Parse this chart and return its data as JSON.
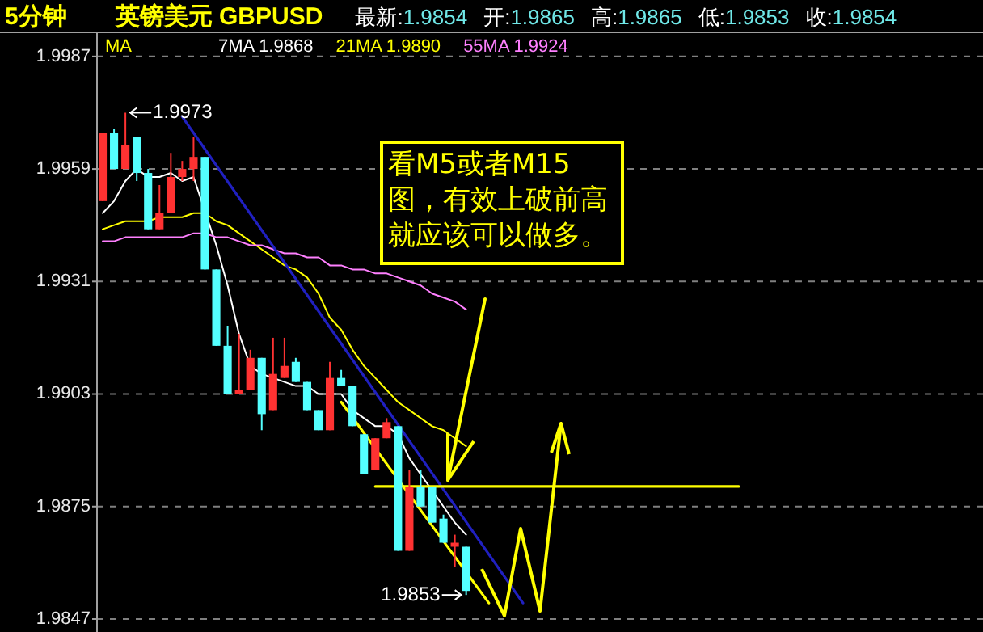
{
  "chart_data": {
    "type": "candlestick",
    "title": "5分钟",
    "subtitle": "英镑美元  GBPUSD",
    "legend_title": "MA",
    "annotations": [
      "最新:1.9854",
      "开:1.9865",
      "高:1.9865",
      "低:1.9853",
      "收:1.9854",
      "看M5或者M15图，有效上破前高就应该可以做多。",
      {
        "text": "1.9973",
        "y": 1.9973
      },
      "1.9853"
    ],
    "categories": [
      null,
      null,
      null,
      null,
      null,
      null,
      null,
      null,
      null,
      null,
      null,
      null,
      null,
      null,
      null,
      null,
      null,
      null,
      null,
      null,
      null,
      null,
      null,
      null,
      null,
      null,
      null,
      null,
      null,
      null,
      null,
      null,
      null,
      null,
      null,
      null,
      null,
      null,
      null,
      null,
      null,
      null,
      null,
      null,
      null,
      null,
      null,
      null,
      null,
      null,
      null,
      null,
      null,
      null,
      null,
      null,
      null,
      null,
      null,
      null,
      null,
      null,
      null,
      null,
      null,
      null,
      null,
      null,
      null,
      null,
      null,
      null,
      null,
      null,
      null,
      null,
      null,
      null
    ],
    "ohlc": [
      [
        1.9951,
        1.9968,
        1.9951,
        1.9968
      ],
      [
        1.9968,
        1.9969,
        1.9959,
        1.9959
      ],
      [
        1.9959,
        1.9973,
        1.9959,
        1.9965
      ],
      [
        1.9967,
        1.9967,
        1.9956,
        1.9958
      ],
      [
        1.9958,
        1.9959,
        1.9944,
        1.9944
      ],
      [
        1.9944,
        1.9955,
        1.9944,
        1.9948
      ],
      [
        1.9948,
        1.9963,
        1.9948,
        1.9957
      ],
      [
        1.9957,
        1.9961,
        1.9956,
        1.9959
      ],
      [
        1.9959,
        1.9967,
        1.9956,
        1.9962
      ],
      [
        1.9962,
        1.9962,
        1.9934,
        1.9934
      ],
      [
        1.9934,
        1.9934,
        1.9915,
        1.9915
      ],
      [
        1.9915,
        1.992,
        1.9903,
        1.9903
      ],
      [
        1.9903,
        1.9918,
        1.9903,
        1.9904
      ],
      [
        1.9904,
        1.9914,
        1.9904,
        1.9912
      ],
      [
        1.9912,
        1.9912,
        1.9894,
        1.9898
      ],
      [
        1.9899,
        1.9917,
        1.9899,
        1.9908
      ],
      [
        1.9907,
        1.9917,
        1.9907,
        1.991
      ],
      [
        1.9911,
        1.9912,
        1.9906,
        1.9906
      ],
      [
        1.9906,
        1.9906,
        1.9899,
        1.9899
      ],
      [
        1.9899,
        1.9899,
        1.9894,
        1.9894
      ],
      [
        1.9894,
        1.9911,
        1.9894,
        1.9907
      ],
      [
        1.9907,
        1.9909,
        1.9905,
        1.9905
      ],
      [
        1.9905,
        1.9905,
        1.9895,
        1.9895
      ],
      [
        1.9893,
        1.9893,
        1.9883,
        1.9883
      ],
      [
        1.9884,
        1.9892,
        1.9884,
        1.9892
      ],
      [
        1.9892,
        1.9897,
        1.9892,
        1.9896
      ],
      [
        1.9895,
        1.9895,
        1.9864,
        1.9864
      ],
      [
        1.9864,
        1.9884,
        1.9864,
        1.988
      ],
      [
        1.988,
        1.9884,
        1.9875,
        1.9875
      ],
      [
        1.988,
        1.988,
        1.9871,
        1.9871
      ],
      [
        1.9872,
        1.9873,
        1.9866,
        1.9866
      ],
      [
        1.9865,
        1.9868,
        1.986,
        1.9866
      ],
      [
        1.9865,
        1.9865,
        1.9853,
        1.9854
      ],
      null,
      null,
      null,
      null,
      null,
      null,
      null,
      null,
      null,
      null,
      null,
      null,
      null,
      null,
      null,
      null,
      null,
      null,
      null,
      null,
      null,
      null,
      null,
      null,
      null,
      null,
      null,
      null,
      null,
      null,
      null,
      null,
      null,
      null,
      null,
      null,
      null,
      null,
      null,
      null,
      null,
      null,
      null,
      null,
      null
    ],
    "colors": [
      "#ff3232",
      "#54ffff",
      "#ff3232",
      "#54ffff",
      "#54ffff",
      "#ff3232",
      "#ff3232",
      "#ff3232",
      "#ff3232",
      "#54ffff",
      "#54ffff",
      "#54ffff",
      "#ff3232",
      "#ff3232",
      "#54ffff",
      "#ff3232",
      "#ff3232",
      "#54ffff",
      "#54ffff",
      "#54ffff",
      "#ff3232",
      "#54ffff",
      "#54ffff",
      "#54ffff",
      "#ff3232",
      "#ff3232",
      "#54ffff",
      "#ff3232",
      "#54ffff",
      "#54ffff",
      "#54ffff",
      "#ff3232",
      "#54ffff",
      null,
      null,
      null,
      null,
      null,
      null,
      null,
      null,
      null,
      null,
      null,
      null,
      null,
      null,
      null,
      null,
      null,
      null,
      null,
      null,
      null,
      null,
      null,
      null,
      null,
      null,
      null,
      null,
      null,
      null,
      null,
      null,
      null,
      null,
      null,
      null,
      null,
      null,
      null,
      null,
      null,
      null,
      null,
      null,
      null
    ],
    "series": [
      {
        "name": "7MA 1.9868",
        "type": "line",
        "color": "#ffffff",
        "values": [
          1.9948,
          1.9951,
          1.9956,
          1.9959,
          1.9957,
          1.9957,
          1.9958,
          1.9956,
          1.9957,
          null,
          1.994,
          1.993,
          1.9918,
          1.991,
          1.9908,
          1.9907,
          1.9906,
          1.9905,
          1.9905,
          1.9903,
          1.9903,
          1.9903,
          1.9899,
          1.9897,
          1.9895,
          1.9895,
          1.9893,
          1.9887,
          1.9883,
          1.9879,
          1.9875,
          1.9871,
          1.9868,
          null,
          null,
          null,
          null,
          null,
          null,
          null,
          null,
          null,
          null,
          null,
          null,
          null,
          null,
          null,
          null,
          null,
          null,
          null,
          null,
          null,
          null,
          null,
          null,
          null,
          null,
          null,
          null,
          null,
          null,
          null,
          null,
          null,
          null,
          null,
          null,
          null,
          null,
          null,
          null,
          null,
          null,
          null,
          null,
          null
        ]
      },
      {
        "name": "21MA 1.9890",
        "type": "line",
        "color": "#ffff00",
        "values": [
          1.9944,
          1.9945,
          1.9946,
          1.9946,
          1.9946,
          1.9947,
          1.9947,
          1.9947,
          1.9948,
          1.9948,
          1.9946,
          1.9945,
          1.9943,
          1.9941,
          1.9939,
          1.9937,
          1.9935,
          1.9934,
          1.9932,
          1.9928,
          1.9922,
          1.9919,
          1.9914,
          1.991,
          1.9907,
          1.9904,
          1.9901,
          1.9899,
          1.9897,
          1.9895,
          1.9894,
          1.9892,
          1.989,
          null,
          null,
          null,
          null,
          null,
          null,
          null,
          null,
          null,
          null,
          null,
          null,
          null,
          null,
          null,
          null,
          null,
          null,
          null,
          null,
          null,
          null,
          null,
          null,
          null,
          null,
          null,
          null,
          null,
          null,
          null,
          null,
          null,
          null,
          null,
          null,
          null,
          null,
          null,
          null,
          null,
          null,
          null,
          null,
          null
        ]
      },
      {
        "name": "55MA 1.9924",
        "type": "line",
        "color": "#ff80ff",
        "values": [
          1.9941,
          1.9941,
          1.9942,
          1.9942,
          1.9942,
          1.9942,
          1.9942,
          1.9942,
          1.9943,
          1.9943,
          1.9942,
          1.9942,
          1.9941,
          1.994,
          1.994,
          1.9939,
          1.9938,
          1.9938,
          1.9937,
          1.9937,
          1.9935,
          1.9935,
          1.9934,
          1.9934,
          1.9933,
          1.9933,
          1.9932,
          1.9931,
          1.993,
          1.9928,
          1.9927,
          1.9926,
          1.9924,
          null,
          null,
          null,
          null,
          null,
          null,
          null,
          null,
          null,
          null,
          null,
          null,
          null,
          null,
          null,
          null,
          null,
          null,
          null,
          null,
          null,
          null,
          null,
          null,
          null,
          null,
          null,
          null,
          null,
          null,
          null,
          null,
          null,
          null,
          null,
          null,
          null,
          null,
          null,
          null,
          null,
          null,
          null,
          null,
          null
        ]
      },
      {
        "type": "line",
        "color": "#2020c0",
        "values": [
          null,
          null,
          null,
          null,
          null,
          null,
          null,
          1.9972,
          null,
          null,
          null,
          null,
          null,
          null,
          null,
          null,
          null,
          null,
          null,
          null,
          null,
          null,
          null,
          null,
          null,
          null,
          null,
          null,
          null,
          null,
          null,
          null,
          null,
          null,
          null,
          null,
          null,
          1.9851,
          null,
          null,
          null,
          null,
          null,
          null,
          null,
          null,
          null,
          null,
          null,
          null,
          null,
          null,
          null,
          null,
          null,
          null,
          null,
          null,
          null,
          null,
          null,
          null,
          null,
          null,
          null,
          null,
          null,
          null,
          null,
          null,
          null,
          null,
          null,
          null,
          null,
          null,
          null,
          null
        ]
      },
      {
        "type": "line",
        "color": "#ffff00",
        "values": [
          null,
          null,
          null,
          null,
          null,
          null,
          null,
          null,
          null,
          null,
          null,
          null,
          null,
          null,
          null,
          null,
          null,
          null,
          null,
          null,
          null,
          1.9901,
          null,
          null,
          null,
          null,
          null,
          null,
          null,
          null,
          null,
          null,
          null,
          null,
          1.9851,
          null,
          null,
          null,
          null,
          null,
          null,
          null,
          null,
          null,
          null,
          null,
          null,
          null,
          null,
          null,
          null,
          null,
          null,
          null,
          null,
          null,
          null,
          null,
          null,
          null,
          null,
          null,
          null,
          null,
          null,
          null,
          null,
          null,
          null,
          null,
          null,
          null,
          null,
          null,
          null,
          null,
          null,
          null
        ]
      },
      {
        "type": "line",
        "color": "#ffff00",
        "values": [
          null,
          null,
          null,
          null,
          null,
          null,
          null,
          null,
          null,
          null,
          null,
          null,
          null,
          null,
          null,
          null,
          null,
          null,
          null,
          null,
          null,
          null,
          null,
          null,
          1.988,
          null,
          null,
          null,
          null,
          null,
          null,
          null,
          null,
          null,
          null,
          null,
          null,
          null,
          null,
          null,
          null,
          null,
          null,
          null,
          null,
          null,
          null,
          null,
          null,
          null,
          null,
          null,
          null,
          null,
          null,
          null,
          1.988,
          null,
          null,
          null,
          null,
          null,
          null,
          null,
          null,
          null,
          null,
          null,
          null,
          null,
          null,
          null,
          null,
          null,
          null,
          null,
          null,
          null
        ]
      }
    ],
    "ylim": [
      1.9847,
      1.9993
    ],
    "yticks": [
      1.9847,
      1.9875,
      1.9903,
      1.9931,
      1.9959,
      1.9987
    ],
    "grid": "y",
    "tick_labels": "y"
  }
}
